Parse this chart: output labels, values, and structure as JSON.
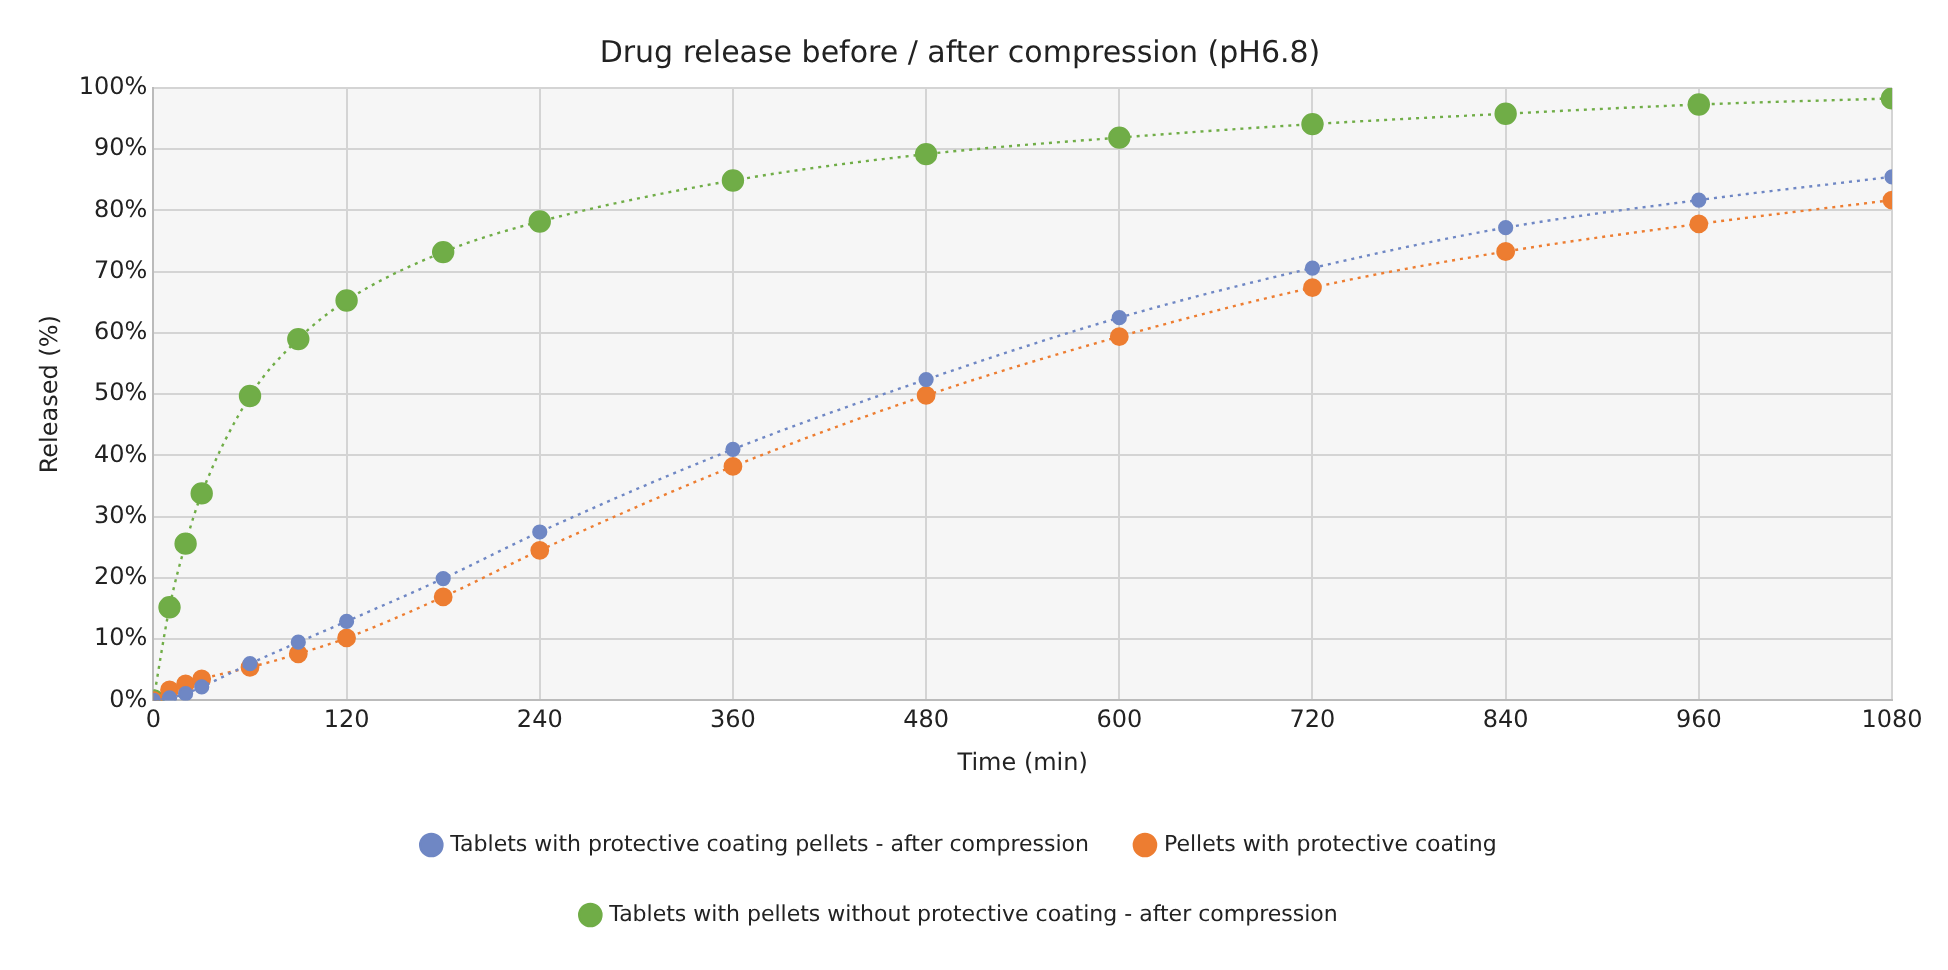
{
  "chart_data": {
    "type": "line",
    "title": "Drug release before / after compression (pH6.8)",
    "xlabel": "Time (min)",
    "ylabel": "Released (%)",
    "x": [
      0,
      10,
      20,
      30,
      60,
      90,
      120,
      180,
      240,
      360,
      480,
      600,
      720,
      840,
      960,
      1080
    ],
    "series": [
      {
        "name": "Tablets with protective coating pellets - after compression",
        "color": "#6f87c4",
        "values": [
          0,
          0.4,
          1.1,
          2.2,
          6,
          9.5,
          12.9,
          19.9,
          27.5,
          41,
          52.4,
          62.5,
          70.6,
          77.2,
          81.7,
          85.5
        ]
      },
      {
        "name": "Pellets with protective coating",
        "color": "#ed7d31",
        "values": [
          0,
          1.7,
          2.7,
          3.5,
          5.4,
          7.6,
          10.2,
          16.9,
          24.5,
          38.2,
          49.8,
          59.4,
          67.4,
          73.3,
          77.8,
          81.7
        ]
      },
      {
        "name": "Tablets with pellets without protective coating - after compression",
        "color": "#70ad47",
        "values": [
          0,
          15.2,
          25.6,
          33.8,
          49.7,
          59,
          65.3,
          73.2,
          78.2,
          84.9,
          89.2,
          91.9,
          94.1,
          95.8,
          97.3,
          98.3
        ]
      }
    ],
    "xlim": [
      0,
      1080
    ],
    "xticks": [
      0,
      120,
      240,
      360,
      480,
      600,
      720,
      840,
      960,
      1080
    ],
    "ylim": [
      0,
      100
    ],
    "yticks": [
      {
        "value": 0,
        "label": "0%"
      },
      {
        "value": 10,
        "label": "10%"
      },
      {
        "value": 20,
        "label": "20%"
      },
      {
        "value": 30,
        "label": "30%"
      },
      {
        "value": 40,
        "label": "40%"
      },
      {
        "value": 50,
        "label": "50%"
      },
      {
        "value": 60,
        "label": "60%"
      },
      {
        "value": 70,
        "label": "70%"
      },
      {
        "value": 80,
        "label": "80%"
      },
      {
        "value": 90,
        "label": "90%"
      },
      {
        "value": 100,
        "label": "100%"
      }
    ],
    "grid": true,
    "legend": "bottom",
    "marker": "circle",
    "line_style": "dotted"
  }
}
